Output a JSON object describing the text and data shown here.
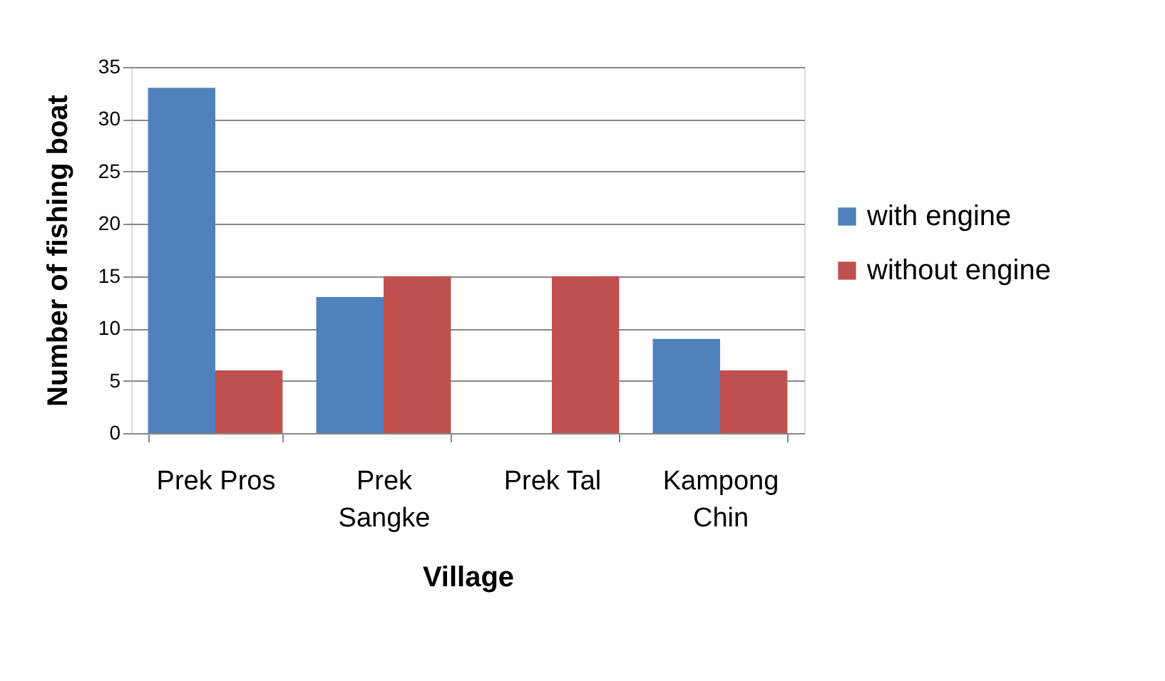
{
  "chart_data": {
    "type": "bar",
    "xlabel": "Village",
    "ylabel": "Number of fishing boat",
    "categories": [
      "Prek Pros",
      "Prek Sangke",
      "Prek Tal",
      "Kampong Chin"
    ],
    "series": [
      {
        "name": "with engine",
        "color": "#4f81bd",
        "values": [
          33,
          13,
          0,
          9
        ]
      },
      {
        "name": "without engine",
        "color": "#c0504d",
        "values": [
          6,
          15,
          15,
          6
        ]
      }
    ],
    "ylim": [
      0,
      35
    ],
    "yticks": [
      0,
      5,
      10,
      15,
      20,
      25,
      30,
      35
    ],
    "grid": "y",
    "legend": "right"
  }
}
